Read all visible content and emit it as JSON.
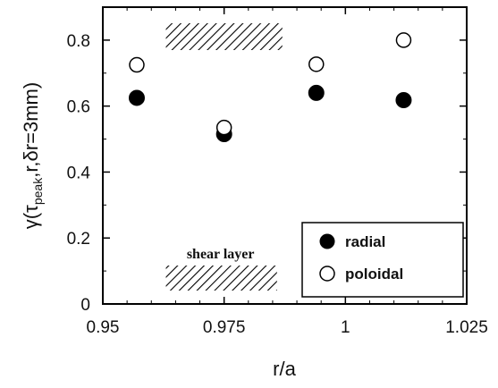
{
  "chart_data": {
    "type": "scatter",
    "xlabel": "r/a",
    "ylabel_main": "γ(τ",
    "ylabel_sub": "peak",
    "ylabel_rest": ",r,δr=3mm)",
    "xlim": [
      0.95,
      1.025
    ],
    "ylim": [
      0,
      0.9
    ],
    "x_ticks": [
      0.95,
      0.975,
      1,
      1.025
    ],
    "x_tick_labels": [
      "0.95",
      "0.975",
      "1",
      "1.025"
    ],
    "y_ticks": [
      0,
      0.2,
      0.4,
      0.6,
      0.8
    ],
    "y_tick_labels": [
      "0",
      "0.2",
      "0.4",
      "0.6",
      "0.8"
    ],
    "series": [
      {
        "name": "radial",
        "marker": "filled-circle",
        "color": "#000000",
        "x": [
          0.957,
          0.975,
          0.994,
          1.012
        ],
        "y": [
          0.625,
          0.515,
          0.64,
          0.618
        ]
      },
      {
        "name": "poloidal",
        "marker": "open-circle",
        "color": "#000000",
        "x": [
          0.957,
          0.975,
          0.994,
          1.012
        ],
        "y": [
          0.725,
          0.535,
          0.727,
          0.8
        ]
      }
    ],
    "legend_position": "bottom-right",
    "annotation": {
      "text": "shear layer",
      "x_range": [
        0.963,
        0.987
      ]
    },
    "grid": false
  }
}
